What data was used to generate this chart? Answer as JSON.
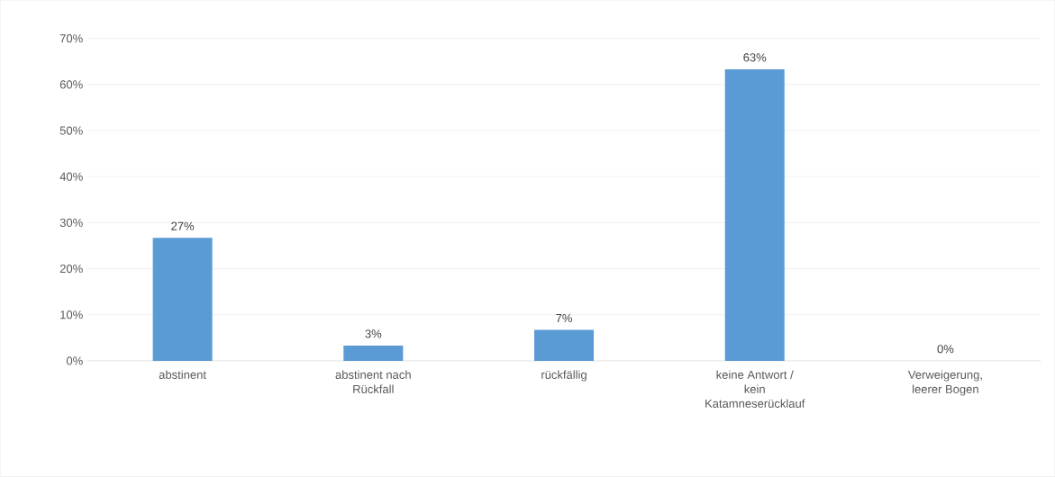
{
  "chart_data": {
    "type": "bar",
    "categories": [
      "abstinent",
      "abstinent nach Rückfall",
      "rückfällig",
      "keine Antwort / kein Katamneserücklauf",
      "Verweigerung, leerer Bogen"
    ],
    "values": [
      26.7,
      3.3,
      6.7,
      63.3,
      0
    ],
    "value_labels": [
      "27%",
      "3%",
      "7%",
      "63%",
      "0%"
    ],
    "color": "#5b9bd5",
    "ylim": [
      0,
      70
    ],
    "yticks": [
      {
        "value": 0,
        "label": "0%"
      },
      {
        "value": 10,
        "label": "10%"
      },
      {
        "value": 20,
        "label": "20%"
      },
      {
        "value": 30,
        "label": "30%"
      },
      {
        "value": 40,
        "label": "40%"
      },
      {
        "value": 50,
        "label": "50%"
      },
      {
        "value": 60,
        "label": "60%"
      },
      {
        "value": 70,
        "label": "70%"
      }
    ],
    "grid": "y"
  }
}
